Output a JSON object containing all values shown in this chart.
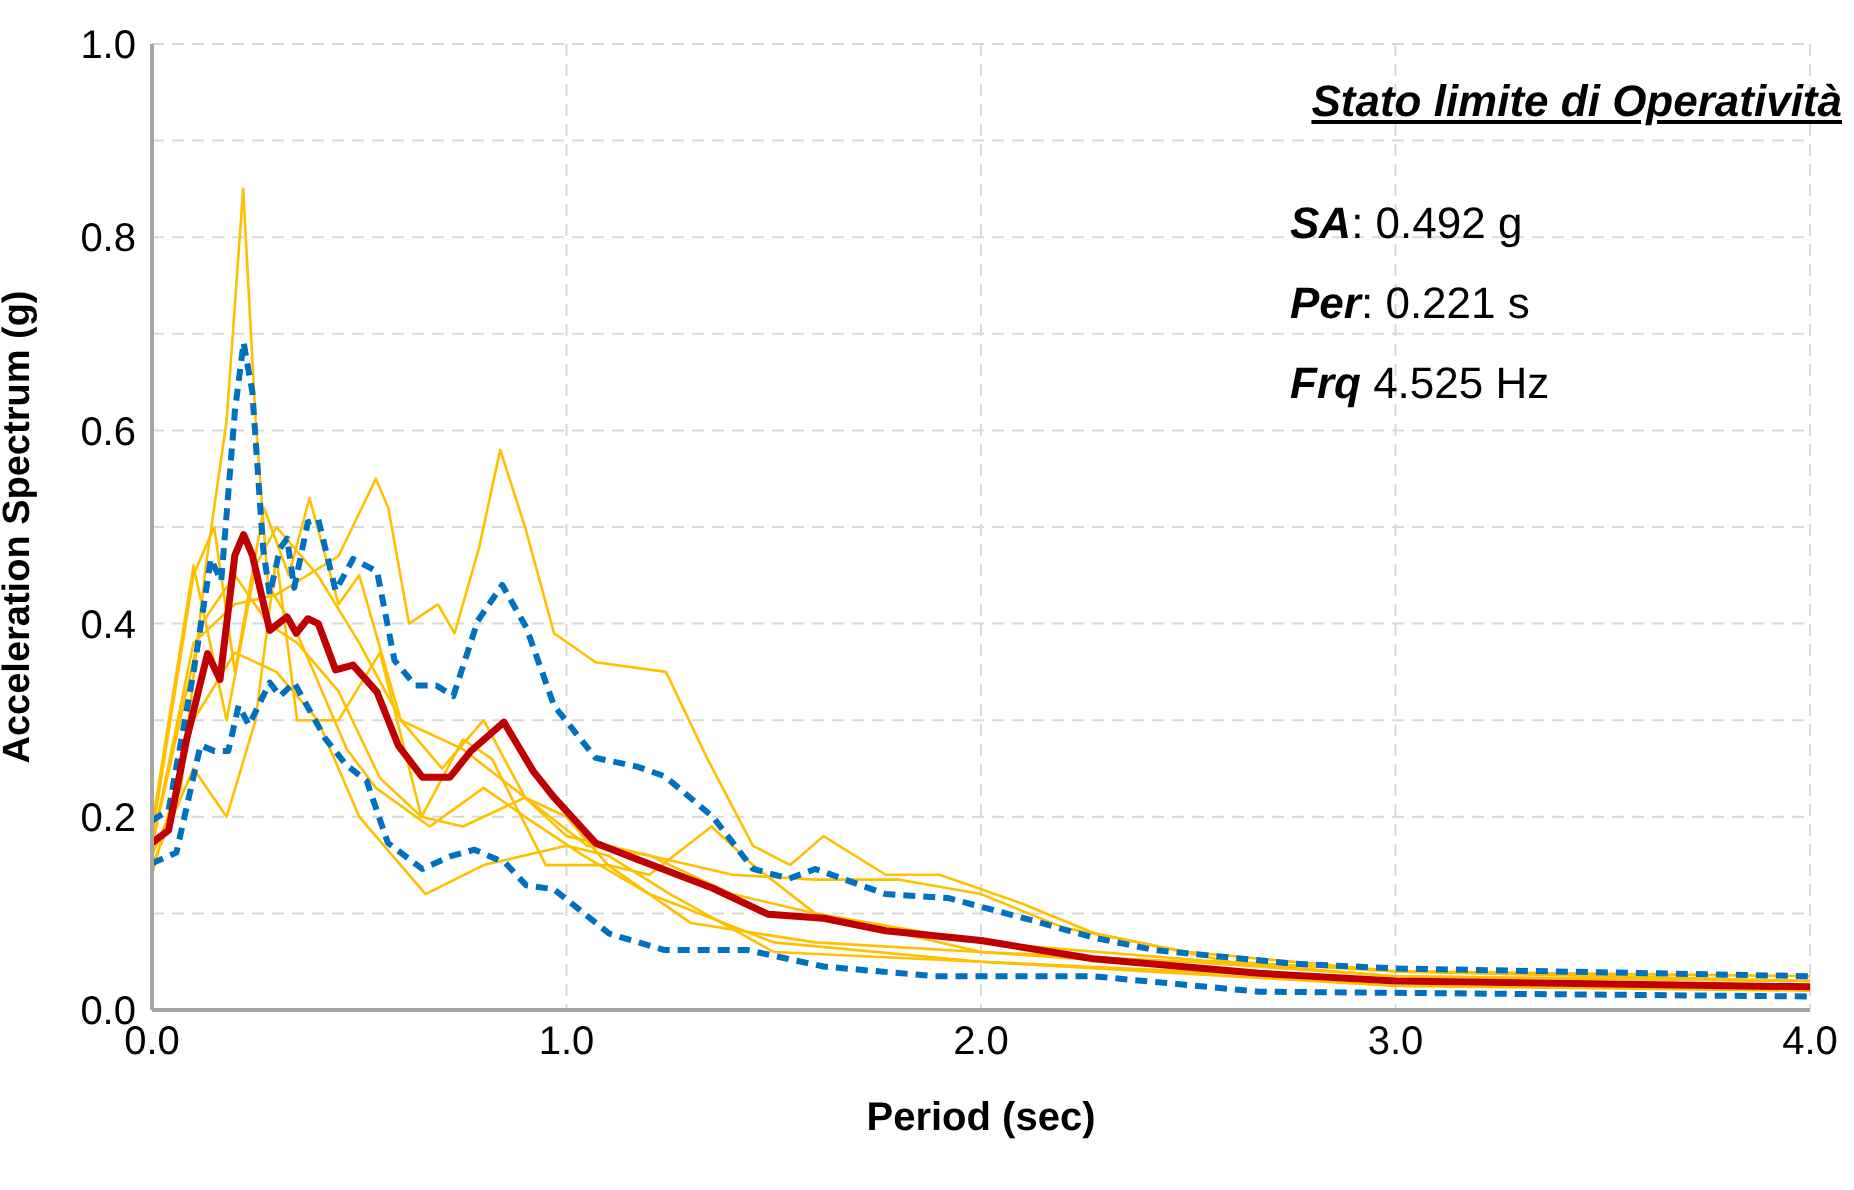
{
  "chart_data": {
    "type": "line",
    "title": "Stato limite di Operatività",
    "xlabel": "Period (sec)",
    "ylabel": "Acceleration Spectrum (g)",
    "annotations": [
      "SA: 0.492 g",
      "Per: 0.221 s",
      "Frq 4.525 Hz"
    ],
    "xlim": [
      0,
      4
    ],
    "ylim": [
      0,
      1
    ],
    "xticks": [
      {
        "value": 0,
        "label": "0.0"
      },
      {
        "value": 1,
        "label": "1.0"
      },
      {
        "value": 2,
        "label": "2.0"
      },
      {
        "value": 3,
        "label": "3.0"
      },
      {
        "value": 4,
        "label": "4.0"
      }
    ],
    "yticks": [
      {
        "value": 0,
        "label": "0.0"
      },
      {
        "value": 0.1,
        "label": null
      },
      {
        "value": 0.2,
        "label": "0.2"
      },
      {
        "value": 0.3,
        "label": null
      },
      {
        "value": 0.4,
        "label": "0.4"
      },
      {
        "value": 0.5,
        "label": null
      },
      {
        "value": 0.6,
        "label": "0.6"
      },
      {
        "value": 0.7,
        "label": null
      },
      {
        "value": 0.8,
        "label": "0.8"
      },
      {
        "value": 0.9,
        "label": null
      },
      {
        "value": 1,
        "label": "1.0"
      }
    ],
    "grid": true,
    "marker": "none",
    "series": [
      {
        "color": "#ffc000",
        "line_style": "solid",
        "x": [
          0,
          0.07,
          0.13,
          0.18,
          0.22,
          0.25,
          0.28,
          0.35,
          0.4,
          0.47,
          0.54,
          0.67,
          0.8,
          0.9,
          1.04,
          1.2,
          1.5,
          2.0,
          3.0,
          4.0
        ],
        "values": [
          0.16,
          0.23,
          0.46,
          0.61,
          0.85,
          0.61,
          0.44,
          0.39,
          0.34,
          0.27,
          0.23,
          0.19,
          0.23,
          0.2,
          0.16,
          0.12,
          0.07,
          0.05,
          0.03,
          0.025
        ]
      },
      {
        "color": "#ffc000",
        "line_style": "solid",
        "x": [
          0,
          0.1,
          0.2,
          0.3,
          0.45,
          0.54,
          0.57,
          0.62,
          0.69,
          0.73,
          0.79,
          0.84,
          0.9,
          0.97,
          1.07,
          1.24,
          1.34,
          1.45,
          1.54,
          1.62,
          1.77,
          1.9,
          2.1,
          2.27,
          2.6,
          3.0,
          4.0
        ],
        "values": [
          0.17,
          0.38,
          0.42,
          0.43,
          0.47,
          0.55,
          0.52,
          0.4,
          0.42,
          0.39,
          0.48,
          0.58,
          0.5,
          0.39,
          0.36,
          0.35,
          0.26,
          0.17,
          0.15,
          0.18,
          0.14,
          0.14,
          0.11,
          0.08,
          0.05,
          0.04,
          0.03
        ]
      },
      {
        "color": "#ffc000",
        "line_style": "solid",
        "x": [
          0,
          0.1,
          0.15,
          0.2,
          0.27,
          0.33,
          0.38,
          0.45,
          0.5,
          0.6,
          0.7,
          0.8,
          0.9,
          1.0,
          1.2,
          1.4,
          1.6,
          2.0,
          3.0,
          4.0
        ],
        "values": [
          0.18,
          0.45,
          0.5,
          0.35,
          0.52,
          0.45,
          0.53,
          0.42,
          0.45,
          0.3,
          0.25,
          0.3,
          0.22,
          0.18,
          0.16,
          0.12,
          0.1,
          0.07,
          0.035,
          0.03
        ]
      },
      {
        "color": "#ffc000",
        "line_style": "solid",
        "x": [
          0,
          0.1,
          0.2,
          0.3,
          0.4,
          0.5,
          0.66,
          0.8,
          1.0,
          1.1,
          1.25,
          1.5,
          2.0,
          3.0,
          4.0
        ],
        "values": [
          0.14,
          0.3,
          0.37,
          0.35,
          0.3,
          0.2,
          0.12,
          0.15,
          0.17,
          0.16,
          0.12,
          0.06,
          0.05,
          0.025,
          0.02
        ]
      },
      {
        "color": "#ffc000",
        "line_style": "solid",
        "x": [
          0,
          0.1,
          0.18,
          0.25,
          0.3,
          0.35,
          0.45,
          0.55,
          0.65,
          0.75,
          0.9,
          1.0,
          1.1,
          1.2,
          1.35,
          1.45,
          1.6,
          2.0,
          3.0,
          4.0
        ],
        "values": [
          0.15,
          0.25,
          0.2,
          0.3,
          0.47,
          0.3,
          0.3,
          0.37,
          0.2,
          0.19,
          0.22,
          0.2,
          0.15,
          0.14,
          0.19,
          0.15,
          0.1,
          0.06,
          0.03,
          0.025
        ]
      },
      {
        "color": "#ffc000",
        "line_style": "solid",
        "x": [
          0,
          0.12,
          0.2,
          0.28,
          0.35,
          0.45,
          0.55,
          0.65,
          0.75,
          0.82,
          0.95,
          1.1,
          1.3,
          1.6,
          2.0,
          2.5,
          3.0,
          4.0
        ],
        "values": [
          0.17,
          0.4,
          0.45,
          0.4,
          0.38,
          0.33,
          0.24,
          0.2,
          0.28,
          0.26,
          0.15,
          0.15,
          0.09,
          0.07,
          0.06,
          0.05,
          0.035,
          0.03
        ]
      },
      {
        "color": "#ffc000",
        "line_style": "solid",
        "x": [
          0,
          0.1,
          0.18,
          0.25,
          0.3,
          0.4,
          0.5,
          0.6,
          0.75,
          0.9,
          1.05,
          1.2,
          1.4,
          1.6,
          1.8,
          2.0,
          2.2,
          2.5,
          3.0,
          4.0
        ],
        "values": [
          0.19,
          0.46,
          0.3,
          0.46,
          0.5,
          0.45,
          0.38,
          0.3,
          0.27,
          0.22,
          0.17,
          0.16,
          0.14,
          0.135,
          0.135,
          0.12,
          0.085,
          0.06,
          0.04,
          0.035
        ]
      },
      {
        "color": "#0070c0",
        "line_style": "dashed",
        "x": [
          0,
          0.04,
          0.1,
          0.142,
          0.167,
          0.2,
          0.221,
          0.242,
          0.268,
          0.284,
          0.309,
          0.326,
          0.343,
          0.376,
          0.401,
          0.443,
          0.485,
          0.543,
          0.585,
          0.635,
          0.686,
          0.727,
          0.786,
          0.845,
          0.903,
          0.97,
          1.07,
          1.17,
          1.237,
          1.353,
          1.45,
          1.537,
          1.6,
          1.77,
          1.92,
          2.13,
          2.27,
          2.42,
          2.75,
          3.0,
          4.0
        ],
        "values": [
          0.196,
          0.207,
          0.349,
          0.467,
          0.444,
          0.62,
          0.691,
          0.64,
          0.478,
          0.43,
          0.478,
          0.488,
          0.437,
          0.505,
          0.508,
          0.434,
          0.467,
          0.454,
          0.362,
          0.336,
          0.336,
          0.325,
          0.403,
          0.44,
          0.396,
          0.315,
          0.261,
          0.252,
          0.242,
          0.2,
          0.146,
          0.136,
          0.146,
          0.12,
          0.116,
          0.092,
          0.075,
          0.062,
          0.048,
          0.043,
          0.035
        ]
      },
      {
        "color": "#0070c0",
        "line_style": "dashed",
        "x": [
          0,
          0.059,
          0.117,
          0.151,
          0.184,
          0.209,
          0.234,
          0.284,
          0.309,
          0.343,
          0.418,
          0.468,
          0.518,
          0.569,
          0.652,
          0.719,
          0.778,
          0.853,
          0.903,
          0.97,
          1.103,
          1.237,
          1.437,
          1.62,
          1.887,
          2.27,
          2.67,
          4.0
        ],
        "values": [
          0.152,
          0.163,
          0.274,
          0.268,
          0.268,
          0.315,
          0.295,
          0.339,
          0.325,
          0.339,
          0.281,
          0.254,
          0.237,
          0.173,
          0.146,
          0.159,
          0.166,
          0.152,
          0.129,
          0.125,
          0.079,
          0.062,
          0.062,
          0.045,
          0.035,
          0.035,
          0.019,
          0.014
        ]
      },
      {
        "color": "#c00000",
        "line_style": "solid",
        "x": [
          0,
          0.04,
          0.084,
          0.134,
          0.164,
          0.2,
          0.221,
          0.242,
          0.284,
          0.326,
          0.348,
          0.376,
          0.401,
          0.443,
          0.485,
          0.543,
          0.594,
          0.652,
          0.719,
          0.769,
          0.849,
          0.92,
          0.97,
          1.07,
          1.17,
          1.353,
          1.487,
          1.62,
          1.77,
          2.0,
          2.27,
          2.67,
          3.0,
          4.0
        ],
        "values": [
          0.173,
          0.186,
          0.281,
          0.369,
          0.342,
          0.471,
          0.492,
          0.471,
          0.393,
          0.407,
          0.39,
          0.405,
          0.4,
          0.352,
          0.357,
          0.329,
          0.274,
          0.241,
          0.241,
          0.268,
          0.298,
          0.247,
          0.22,
          0.173,
          0.156,
          0.126,
          0.099,
          0.095,
          0.082,
          0.072,
          0.053,
          0.038,
          0.03,
          0.024
        ]
      }
    ]
  }
}
